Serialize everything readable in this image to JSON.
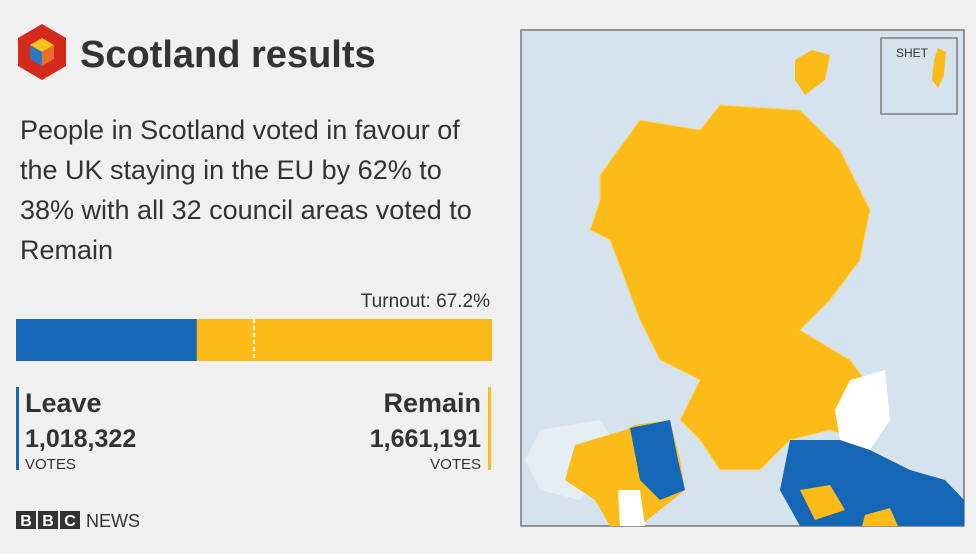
{
  "header": {
    "title": "Scotland results"
  },
  "summary": "People in Scotland voted in favour of the UK staying in the EU by 62% to 38% with all 32 council areas voted to Remain",
  "turnout": "Turnout: 67.2%",
  "leave": {
    "name": "Leave",
    "votes": {
      "value": 1018322,
      "label": "1,018,322"
    },
    "unit": "VOTES",
    "color": "#1467b7"
  },
  "remain": {
    "name": "Remain",
    "votes": {
      "value": 1661191,
      "label": "1,661,191"
    },
    "unit": "VOTES",
    "color": "#fdbb1a"
  },
  "footer": {
    "brand": [
      "B",
      "B",
      "C"
    ],
    "news": "NEWS"
  },
  "map": {
    "inset_label": "SHET"
  }
}
